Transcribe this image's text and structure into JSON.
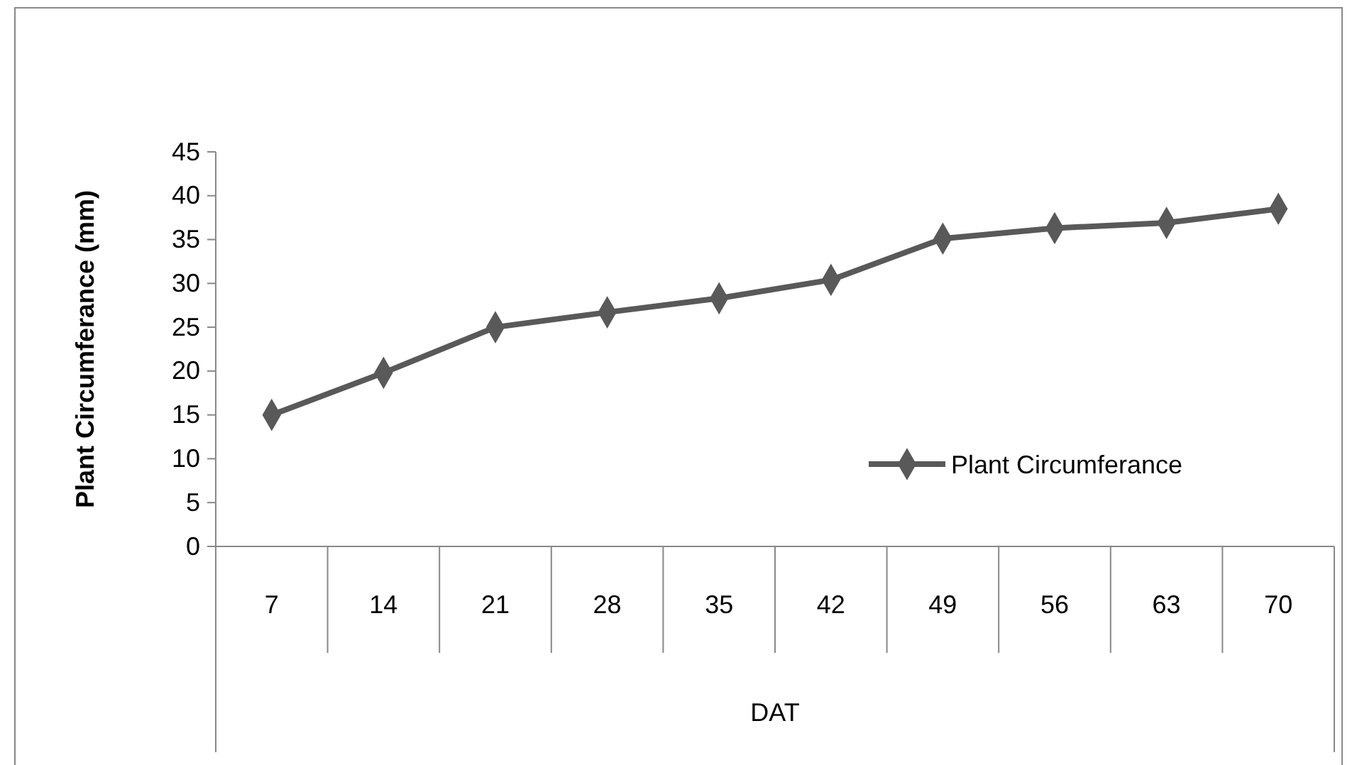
{
  "chart_data": {
    "type": "line",
    "ylabel": "Plant Circumferance (mm)",
    "xlabel": "DAT",
    "categories": [
      "7",
      "14",
      "21",
      "28",
      "35",
      "42",
      "49",
      "56",
      "63",
      "70"
    ],
    "series": [
      {
        "name": "Plant Circumferance",
        "color": "#595959",
        "values": [
          15.0,
          19.8,
          25.0,
          26.7,
          28.3,
          30.4,
          35.1,
          36.3,
          36.9,
          38.5
        ]
      }
    ],
    "ylim": [
      0,
      45
    ],
    "yticks": [
      0,
      5,
      10,
      15,
      20,
      25,
      30,
      35,
      40,
      45
    ],
    "marker": "diamond",
    "legend": "right",
    "grid": false
  }
}
